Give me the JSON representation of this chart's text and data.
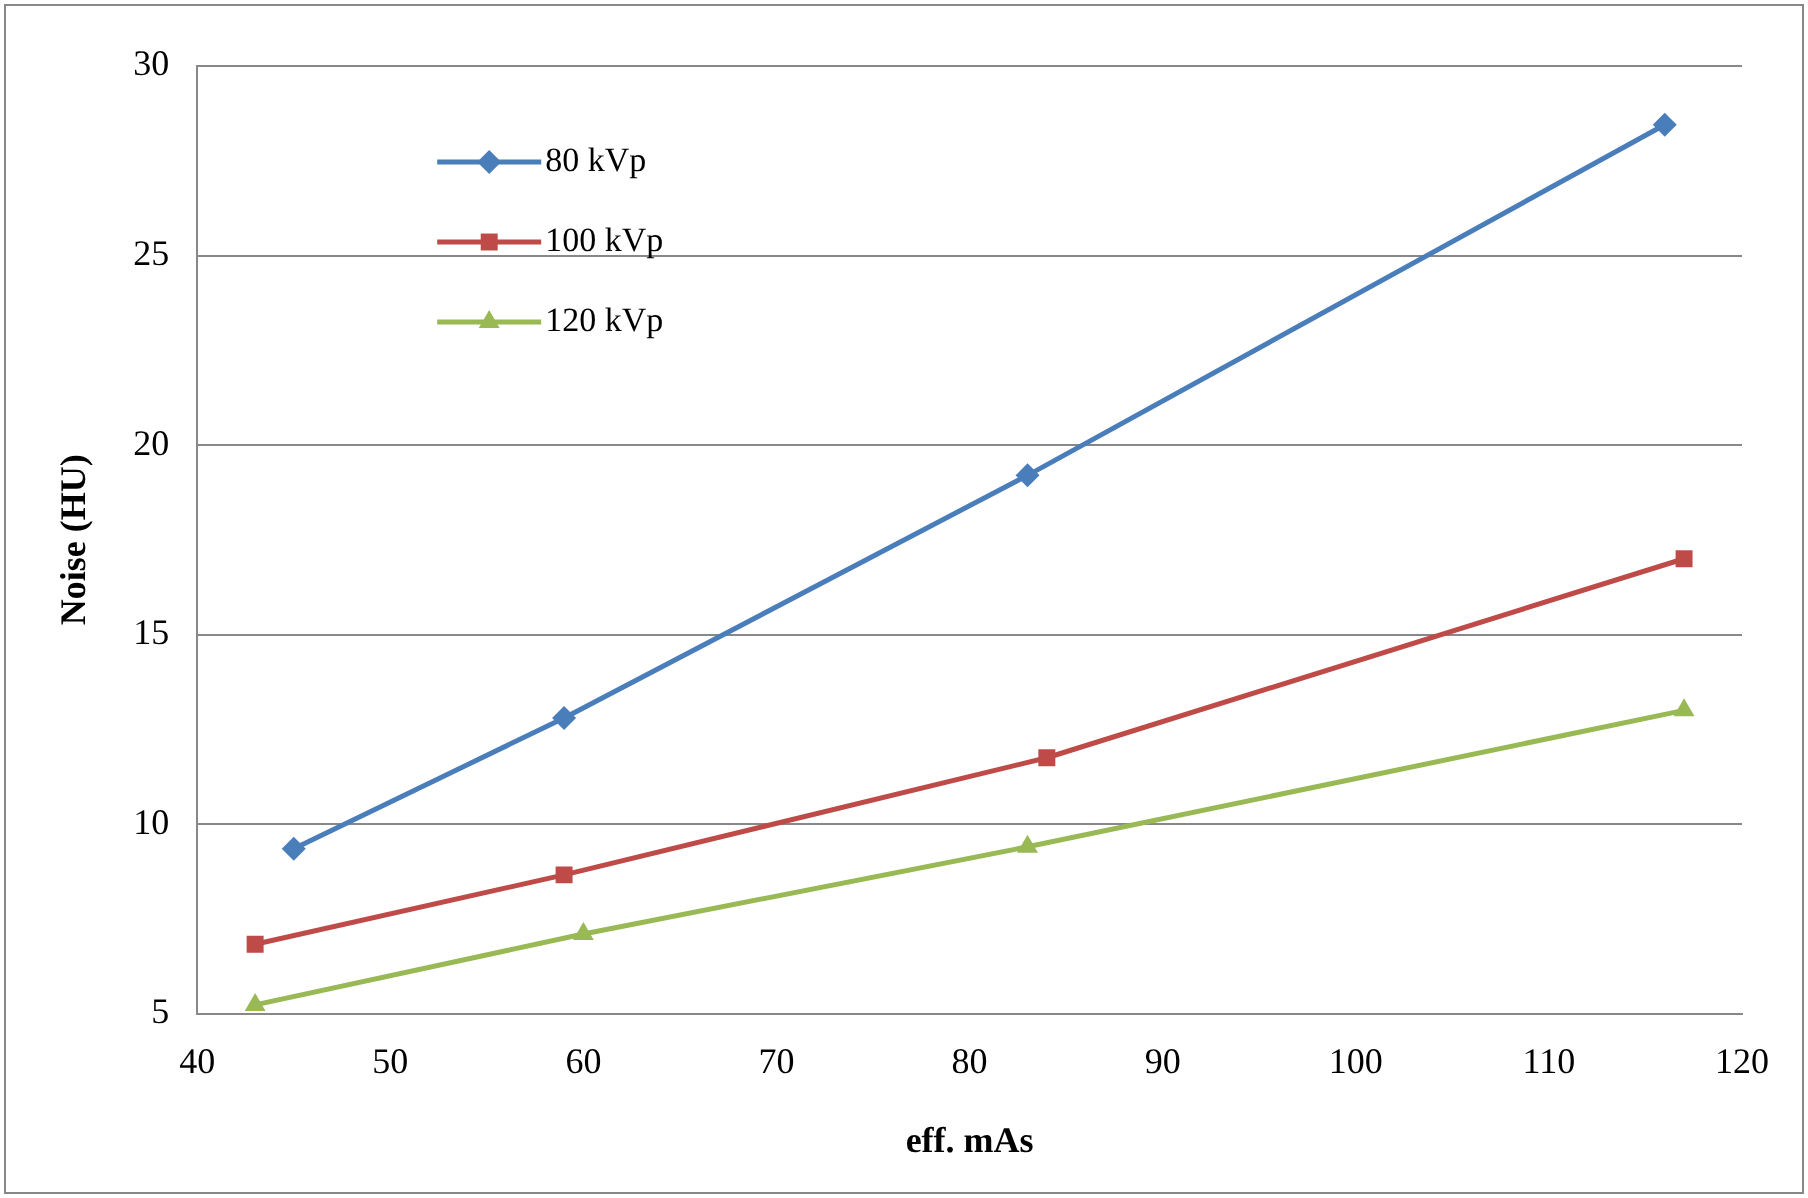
{
  "chart_data": {
    "type": "line",
    "xlabel": "eff. mAs",
    "ylabel": "Noise (HU)",
    "xlim": [
      40,
      120
    ],
    "xticks": [
      40,
      50,
      60,
      70,
      80,
      90,
      100,
      110,
      120
    ],
    "ylim": [
      5,
      30
    ],
    "yticks": [
      5,
      10,
      15,
      20,
      25,
      30
    ],
    "grid": "y",
    "legend": "top left",
    "series": [
      {
        "name": "80 kVp",
        "color": "#4a7ebb",
        "marker": "diamond",
        "x": [
          45,
          59,
          83,
          116
        ],
        "values": [
          9.35,
          12.8,
          19.2,
          28.45
        ]
      },
      {
        "name": "100 kVp",
        "color": "#be4b48",
        "marker": "square",
        "x": [
          43,
          59,
          84,
          117
        ],
        "values": [
          6.83,
          8.66,
          11.75,
          17.0
        ]
      },
      {
        "name": "120 kVp",
        "color": "#98b954",
        "marker": "triangle",
        "x": [
          43,
          60,
          83,
          117
        ],
        "values": [
          5.23,
          7.1,
          9.4,
          13.0
        ]
      }
    ]
  }
}
